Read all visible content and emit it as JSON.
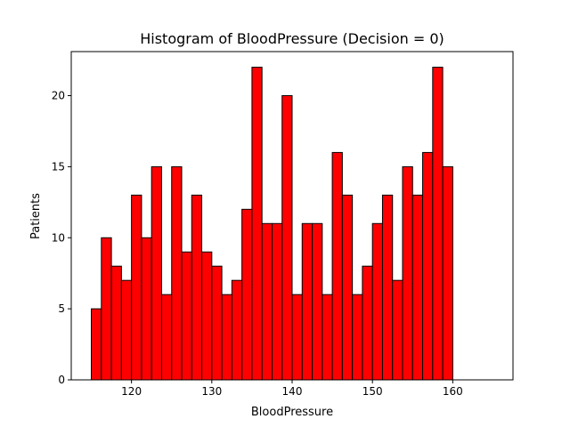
{
  "chart_data": {
    "type": "bar",
    "title": "Histogram of BloodPressure (Decision = 0)",
    "xlabel": "BloodPressure",
    "ylabel": "Patients",
    "x_start": 115,
    "bin_width": 1.25,
    "values": [
      5,
      10,
      8,
      7,
      13,
      10,
      15,
      6,
      15,
      9,
      13,
      9,
      8,
      6,
      7,
      12,
      22,
      11,
      11,
      20,
      6,
      11,
      11,
      6,
      16,
      13,
      6,
      8,
      11,
      13,
      7,
      15,
      13,
      16,
      22,
      15
    ],
    "xlim": [
      112.5,
      167.5
    ],
    "ylim": [
      0,
      23.1
    ],
    "xticks": [
      120,
      130,
      140,
      150,
      160
    ],
    "yticks": [
      0,
      5,
      10,
      15,
      20
    ],
    "bar_color": "#ff0000",
    "edge_color": "#000000",
    "grid": false,
    "legend": "none"
  }
}
